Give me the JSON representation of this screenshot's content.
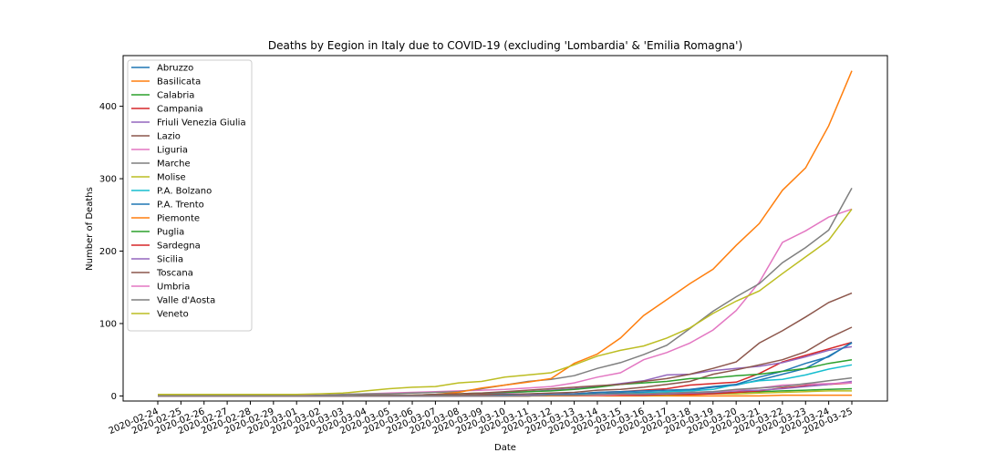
{
  "chart_data": {
    "type": "line",
    "title": "Deaths by Eegion in Italy due to COVID-19 (excluding 'Lombardia' & 'Emilia Romagna')",
    "xlabel": "Date",
    "ylabel": "Number of Deaths",
    "ylim": [
      -7,
      470
    ],
    "yticks": [
      0,
      100,
      200,
      300,
      400
    ],
    "grid": false,
    "legend_position": "top-left",
    "categories": [
      "2020-02-24",
      "2020-02-25",
      "2020-02-26",
      "2020-02-27",
      "2020-02-28",
      "2020-02-29",
      "2020-03-01",
      "2020-03-02",
      "2020-03-03",
      "2020-03-04",
      "2020-03-05",
      "2020-03-06",
      "2020-03-07",
      "2020-03-08",
      "2020-03-09",
      "2020-03-10",
      "2020-03-11",
      "2020-03-12",
      "2020-03-13",
      "2020-03-14",
      "2020-03-15",
      "2020-03-16",
      "2020-03-17",
      "2020-03-18",
      "2020-03-19",
      "2020-03-20",
      "2020-03-21",
      "2020-03-22",
      "2020-03-23",
      "2020-03-24",
      "2020-03-25"
    ],
    "series": [
      {
        "name": "Abruzzo",
        "color": "#1f77b4",
        "values": [
          0,
          0,
          0,
          0,
          0,
          0,
          0,
          0,
          0,
          0,
          0,
          0,
          0,
          0,
          1,
          1,
          1,
          2,
          2,
          3,
          4,
          5,
          6,
          8,
          12,
          15,
          22,
          30,
          38,
          55,
          73
        ]
      },
      {
        "name": "Basilicata",
        "color": "#ff7f0e",
        "values": [
          0,
          0,
          0,
          0,
          0,
          0,
          0,
          0,
          0,
          0,
          0,
          0,
          0,
          0,
          0,
          0,
          0,
          0,
          0,
          0,
          0,
          0,
          0,
          0,
          0,
          0,
          0,
          1,
          1,
          1,
          1
        ]
      },
      {
        "name": "Calabria",
        "color": "#2ca02c",
        "values": [
          0,
          0,
          0,
          0,
          0,
          0,
          0,
          0,
          0,
          0,
          0,
          0,
          0,
          0,
          0,
          0,
          0,
          1,
          1,
          1,
          2,
          3,
          3,
          4,
          4,
          5,
          6,
          7,
          8,
          9,
          10
        ]
      },
      {
        "name": "Campania",
        "color": "#d62728",
        "values": [
          0,
          0,
          0,
          0,
          0,
          0,
          0,
          0,
          0,
          0,
          0,
          0,
          0,
          0,
          1,
          1,
          1,
          2,
          3,
          5,
          6,
          8,
          10,
          15,
          17,
          19,
          31,
          47,
          56,
          65,
          74
        ]
      },
      {
        "name": "Friuli Venezia Giulia",
        "color": "#9467bd",
        "values": [
          0,
          0,
          0,
          0,
          0,
          0,
          0,
          0,
          0,
          0,
          0,
          0,
          0,
          0,
          2,
          4,
          6,
          8,
          10,
          13,
          17,
          21,
          29,
          30,
          35,
          38,
          41,
          46,
          54,
          63,
          68
        ]
      },
      {
        "name": "Lazio",
        "color": "#8c564b",
        "values": [
          0,
          0,
          0,
          0,
          0,
          0,
          0,
          0,
          0,
          0,
          0,
          1,
          1,
          1,
          2,
          2,
          3,
          4,
          5,
          8,
          9,
          12,
          16,
          20,
          30,
          36,
          43,
          50,
          61,
          80,
          95
        ]
      },
      {
        "name": "Liguria",
        "color": "#e377c2",
        "values": [
          0,
          0,
          0,
          0,
          0,
          1,
          1,
          1,
          2,
          3,
          4,
          5,
          6,
          7,
          8,
          9,
          11,
          13,
          18,
          26,
          32,
          50,
          60,
          73,
          91,
          118,
          157,
          212,
          228,
          247,
          258
        ]
      },
      {
        "name": "Marche",
        "color": "#7f7f7f",
        "values": [
          0,
          0,
          0,
          0,
          0,
          0,
          0,
          1,
          2,
          3,
          3,
          4,
          5,
          6,
          10,
          15,
          20,
          23,
          28,
          38,
          46,
          57,
          70,
          93,
          117,
          137,
          155,
          184,
          205,
          229,
          287
        ]
      },
      {
        "name": "Molise",
        "color": "#bcbd22",
        "values": [
          0,
          0,
          0,
          0,
          0,
          0,
          0,
          0,
          0,
          0,
          0,
          0,
          0,
          0,
          0,
          0,
          0,
          1,
          1,
          1,
          1,
          1,
          1,
          2,
          3,
          3,
          4,
          5,
          6,
          7,
          7
        ]
      },
      {
        "name": "P.A. Bolzano",
        "color": "#17becf",
        "values": [
          0,
          0,
          0,
          0,
          0,
          0,
          0,
          0,
          0,
          0,
          0,
          0,
          0,
          0,
          0,
          0,
          1,
          1,
          2,
          2,
          3,
          4,
          6,
          7,
          9,
          16,
          21,
          23,
          29,
          37,
          43
        ]
      },
      {
        "name": "P.A. Trento",
        "color": "#1f77b4",
        "values": [
          0,
          0,
          0,
          0,
          0,
          0,
          0,
          0,
          0,
          0,
          0,
          0,
          0,
          0,
          0,
          1,
          1,
          2,
          3,
          5,
          6,
          7,
          8,
          9,
          13,
          16,
          26,
          34,
          45,
          54,
          74
        ]
      },
      {
        "name": "Piemonte",
        "color": "#ff7f0e",
        "values": [
          0,
          0,
          0,
          0,
          0,
          0,
          0,
          0,
          0,
          0,
          0,
          1,
          2,
          5,
          11,
          15,
          19,
          24,
          45,
          58,
          80,
          111,
          133,
          155,
          175,
          208,
          238,
          284,
          315,
          373,
          449
        ]
      },
      {
        "name": "Puglia",
        "color": "#2ca02c",
        "values": [
          0,
          0,
          0,
          0,
          0,
          0,
          0,
          0,
          0,
          1,
          1,
          1,
          2,
          3,
          4,
          5,
          6,
          7,
          9,
          12,
          16,
          18,
          20,
          24,
          25,
          28,
          30,
          34,
          38,
          45,
          50
        ]
      },
      {
        "name": "Sardegna",
        "color": "#d62728",
        "values": [
          0,
          0,
          0,
          0,
          0,
          0,
          0,
          0,
          0,
          0,
          0,
          0,
          0,
          0,
          0,
          0,
          0,
          1,
          1,
          1,
          1,
          1,
          2,
          2,
          3,
          5,
          7,
          11,
          14,
          16,
          18
        ]
      },
      {
        "name": "Sicilia",
        "color": "#9467bd",
        "values": [
          0,
          0,
          0,
          0,
          0,
          0,
          0,
          0,
          0,
          0,
          0,
          0,
          0,
          0,
          0,
          0,
          1,
          1,
          1,
          1,
          2,
          2,
          3,
          4,
          5,
          7,
          8,
          10,
          13,
          16,
          20
        ]
      },
      {
        "name": "Toscana",
        "color": "#8c564b",
        "values": [
          0,
          0,
          0,
          0,
          0,
          0,
          0,
          0,
          0,
          1,
          1,
          1,
          2,
          3,
          4,
          6,
          8,
          10,
          12,
          14,
          16,
          20,
          24,
          30,
          38,
          47,
          73,
          90,
          109,
          129,
          142
        ]
      },
      {
        "name": "Umbria",
        "color": "#e377c2",
        "values": [
          0,
          0,
          0,
          0,
          0,
          0,
          0,
          0,
          0,
          0,
          0,
          0,
          0,
          0,
          0,
          0,
          0,
          1,
          1,
          1,
          2,
          3,
          4,
          5,
          6,
          8,
          11,
          15,
          16,
          17,
          18
        ]
      },
      {
        "name": "Valle d'Aosta",
        "color": "#7f7f7f",
        "values": [
          0,
          0,
          0,
          0,
          0,
          0,
          0,
          0,
          0,
          0,
          0,
          0,
          0,
          0,
          0,
          0,
          0,
          1,
          1,
          2,
          3,
          3,
          4,
          5,
          6,
          9,
          11,
          13,
          17,
          21,
          25
        ]
      },
      {
        "name": "Veneto",
        "color": "#bcbd22",
        "values": [
          2,
          2,
          2,
          2,
          2,
          2,
          2,
          3,
          4,
          7,
          10,
          12,
          13,
          18,
          20,
          26,
          29,
          32,
          43,
          55,
          63,
          69,
          80,
          94,
          114,
          131,
          145,
          169,
          192,
          215,
          258
        ]
      }
    ]
  }
}
